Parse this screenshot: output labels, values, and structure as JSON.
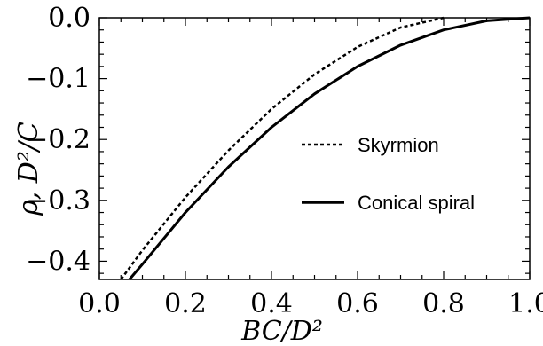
{
  "chart_data": {
    "type": "line",
    "xlabel": "BC/D²",
    "ylabel": "ρ, D²/C",
    "xlim": [
      0.0,
      1.0
    ],
    "ylim": [
      -0.43,
      0.0
    ],
    "x_ticks": [
      "0.0",
      "0.2",
      "0.4",
      "0.6",
      "0.8",
      "1.0"
    ],
    "y_ticks": [
      "0.0",
      "−0.1",
      "−0.2",
      "−0.3",
      "−0.4"
    ],
    "legend_position": "center-right",
    "series": [
      {
        "name": "Skyrmion",
        "style": "dotted",
        "color": "#000000",
        "x": [
          0.05,
          0.1,
          0.2,
          0.3,
          0.4,
          0.5,
          0.6,
          0.7,
          0.8
        ],
        "y": [
          -0.43,
          -0.382,
          -0.295,
          -0.218,
          -0.15,
          -0.093,
          -0.048,
          -0.016,
          0.0
        ]
      },
      {
        "name": "Conical spiral",
        "style": "solid",
        "color": "#000000",
        "x": [
          0.07,
          0.1,
          0.2,
          0.3,
          0.4,
          0.5,
          0.6,
          0.7,
          0.8,
          0.9,
          1.0
        ],
        "y": [
          -0.43,
          -0.405,
          -0.32,
          -0.245,
          -0.18,
          -0.125,
          -0.08,
          -0.045,
          -0.02,
          -0.005,
          0.0
        ]
      }
    ]
  }
}
